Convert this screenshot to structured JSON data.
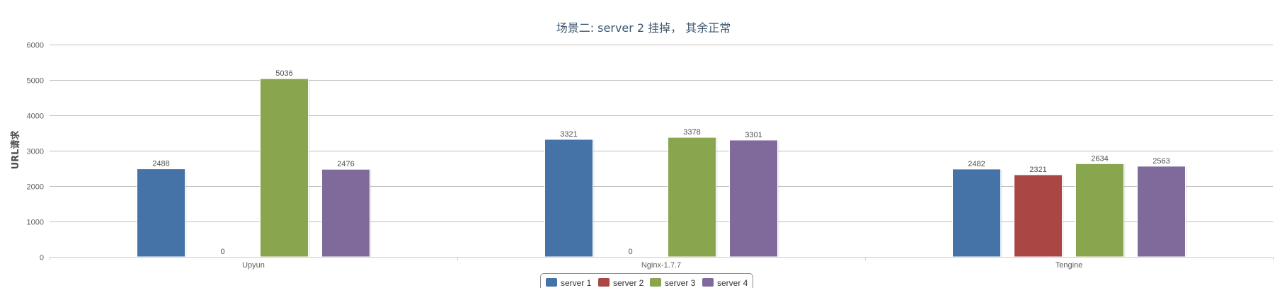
{
  "chart_data": {
    "type": "bar",
    "title": "场景二: server 2 挂掉， 其余正常",
    "ylabel": "URL请求",
    "xlabel": "",
    "ylim": [
      0,
      6000
    ],
    "yticks": [
      0,
      1000,
      2000,
      3000,
      4000,
      5000,
      6000
    ],
    "categories": [
      "Upyun",
      "Nginx-1.7.7",
      "Tengine"
    ],
    "grid": true,
    "legend": "bottom-center",
    "series": [
      {
        "name": "server 1",
        "color": "#4572a7",
        "values": [
          2488,
          3321,
          2482
        ]
      },
      {
        "name": "server 2",
        "color": "#aa4643",
        "values": [
          0,
          0,
          2321
        ]
      },
      {
        "name": "server 3",
        "color": "#89a54e",
        "values": [
          5036,
          3378,
          2634
        ]
      },
      {
        "name": "server 4",
        "color": "#80699b",
        "values": [
          2476,
          3301,
          2563
        ]
      }
    ]
  }
}
